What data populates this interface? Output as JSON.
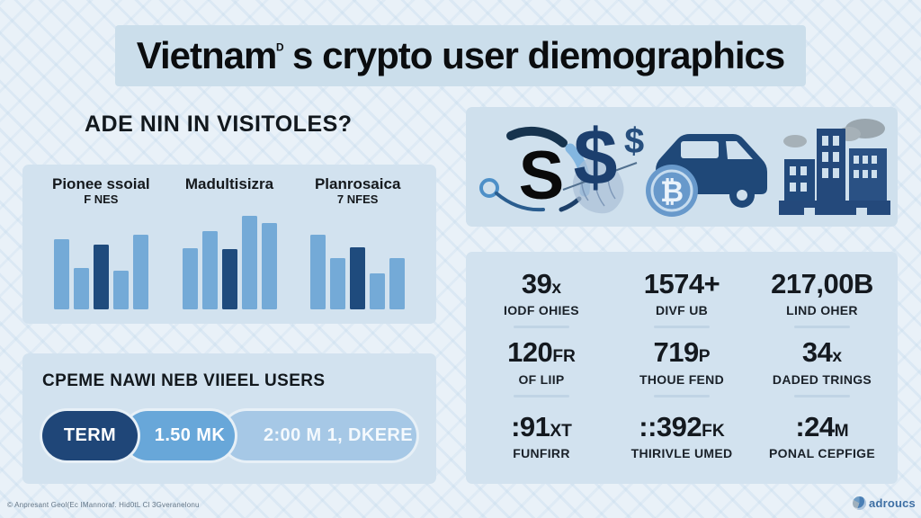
{
  "title": {
    "prefix": "Vietnam",
    "sup": "ᴰ",
    "rest": " s crypto user diemographics"
  },
  "left": {
    "heading": "ADE NIN IN VISITOLES?",
    "users_panel": {
      "heading": "CPEME NAWI NEB VIIEEL USERS",
      "segments": [
        {
          "label": "TERM",
          "color": "#1f4678"
        },
        {
          "label": "1.50 MK",
          "color": "#68a7d9"
        },
        {
          "label": "2:00 M 1, DKERE",
          "color": "#a6c8e6"
        }
      ]
    }
  },
  "chart_data": {
    "type": "bar",
    "title": "ADE NIN IN VISITOLES?",
    "xlabel": "",
    "ylabel": "",
    "ylim": [
      0,
      110
    ],
    "grid": false,
    "legend": "none",
    "colors": {
      "bar": "#74aad7",
      "highlight": "#1f4b7d"
    },
    "groups": [
      {
        "label": "Pionee ssoial",
        "sublabel": "F NES",
        "values": [
          78,
          46,
          72,
          43,
          83
        ],
        "highlight_index": 2
      },
      {
        "label": "Madultisizra",
        "sublabel": "",
        "values": [
          68,
          87,
          67,
          104,
          96
        ],
        "highlight_index": 2
      },
      {
        "label": "Planrosaica",
        "sublabel": "7 NFES",
        "values": [
          83,
          57,
          69,
          40,
          57
        ],
        "highlight_index": 2
      }
    ]
  },
  "icons_strip": {
    "s_glyph": "S",
    "dollar_glyph": "$",
    "small_dollar_glyph": "$",
    "bitcoin_glyph": "₿"
  },
  "stats": {
    "cells": [
      {
        "main": "39",
        "suffix": "x",
        "label": "IODF OHIES",
        "divider": true
      },
      {
        "main": "1574+",
        "suffix": "",
        "label": "DIVF UB",
        "divider": true
      },
      {
        "main": "217,00B",
        "suffix": "",
        "label": "LIND OHER",
        "divider": true
      },
      {
        "main": "120",
        "suffix": "FR",
        "label": "OF LIIP",
        "divider": true
      },
      {
        "main": "719",
        "suffix": "P",
        "label": "THOUE FEND",
        "divider": true
      },
      {
        "main": "34",
        "suffix": "x",
        "label": "DADED TRINGS",
        "divider": true
      },
      {
        "main": ":91",
        "suffix": "XT",
        "label": "FUNFIRR",
        "divider": false
      },
      {
        "main": "::392",
        "suffix": "FK",
        "label": "THIRIVLE UMED",
        "divider": false
      },
      {
        "main": ":24",
        "suffix": "M",
        "label": "PONAL CEPFIGE",
        "divider": false
      }
    ]
  },
  "footer": {
    "copyright": "© Anpresant Geol(Ec IMannoraf. Hid0tL Cl 3Gveranelonu",
    "brand": "adroucs"
  }
}
